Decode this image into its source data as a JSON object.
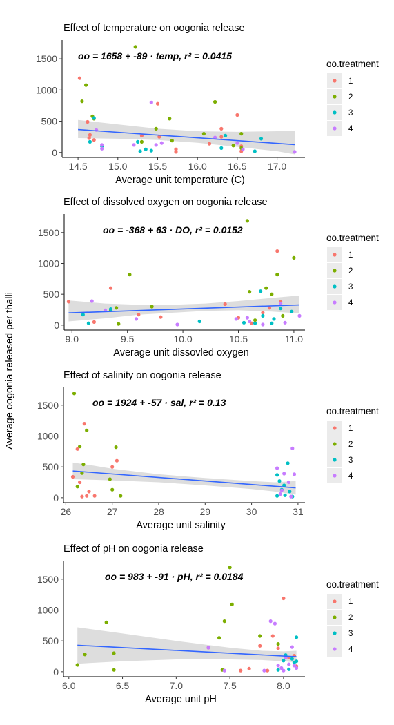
{
  "shared_ylabel": "Average oogonia released per thalli",
  "colors": {
    "1": "#F8766D",
    "2": "#7CAE00",
    "3": "#00BFC4",
    "4": "#C77CFF",
    "fit": "#3366FF",
    "band": "#D9D9D9"
  },
  "chart_data": [
    {
      "type": "scatter",
      "title": "Effect of temperature on oogonia release",
      "xlabel": "Average unit temperature (C)",
      "equation": "oo = 1658 + -89 · temp,  r² = 0.0415",
      "xlim": [
        14.3,
        17.35
      ],
      "ylim": [
        -80,
        1800
      ],
      "xticks": [
        "14.5",
        "15.0",
        "15.5",
        "16.0",
        "16.5",
        "17.0"
      ],
      "yticks": [
        "0",
        "500",
        "1000",
        "1500"
      ],
      "legend": {
        "title": "oo.treatment",
        "items": [
          "1",
          "2",
          "3",
          "4"
        ]
      },
      "fit": {
        "intercept": 1658,
        "slope": -89,
        "band": [
          [
            14.5,
            230,
            520
          ],
          [
            15.0,
            220,
            450
          ],
          [
            15.5,
            200,
            380
          ],
          [
            16.0,
            155,
            340
          ],
          [
            16.5,
            90,
            330
          ],
          [
            17.0,
            20,
            340
          ],
          [
            17.22,
            -30,
            350
          ]
        ]
      },
      "series": [
        {
          "treatment": "1",
          "x": [
            14.52,
            14.62,
            14.65,
            14.7,
            15.3,
            15.5,
            15.52,
            15.73,
            15.73,
            16.15,
            16.3,
            16.3,
            16.5,
            16.55,
            16.55,
            14.64
          ],
          "y": [
            1190,
            490,
            280,
            200,
            270,
            780,
            250,
            50,
            10,
            140,
            380,
            250,
            600,
            100,
            20,
            230
          ]
        },
        {
          "treatment": "2",
          "x": [
            14.55,
            14.6,
            14.68,
            14.7,
            15.22,
            15.48,
            15.65,
            15.68,
            16.08,
            16.22,
            16.45,
            16.55,
            16.55,
            15.3
          ],
          "y": [
            820,
            1080,
            580,
            540,
            1690,
            380,
            540,
            190,
            300,
            810,
            110,
            300,
            70,
            170
          ]
        },
        {
          "treatment": "3",
          "x": [
            14.7,
            14.65,
            14.8,
            15.25,
            15.35,
            15.42,
            16.3,
            16.35,
            16.72,
            16.8,
            15.28
          ],
          "y": [
            550,
            170,
            100,
            170,
            50,
            30,
            70,
            270,
            20,
            220,
            20
          ]
        },
        {
          "treatment": "4",
          "x": [
            14.73,
            14.8,
            14.8,
            15.2,
            15.42,
            15.55,
            16.22,
            16.5,
            16.57,
            17.22,
            15.48
          ],
          "y": [
            360,
            120,
            60,
            120,
            800,
            150,
            240,
            150,
            50,
            10,
            120
          ]
        }
      ]
    },
    {
      "type": "scatter",
      "title": "Effect of dissolved oxygen on oogonia release",
      "xlabel": "Average unit dissovled oxygen",
      "equation": "oo = -368 + 63 · DO,  r² = 0.0152",
      "xlim": [
        8.93,
        11.1
      ],
      "ylim": [
        -80,
        1800
      ],
      "xticks": [
        "9.0",
        "9.5",
        "10.0",
        "10.5",
        "11.0"
      ],
      "yticks": [
        "0",
        "500",
        "1000",
        "1500"
      ],
      "legend": {
        "title": "oo.treatment",
        "items": [
          "1",
          "2",
          "3",
          "4"
        ]
      },
      "fit": {
        "intercept": -368,
        "slope": 63,
        "band": [
          [
            8.97,
            60,
            400
          ],
          [
            9.3,
            110,
            350
          ],
          [
            9.6,
            170,
            330
          ],
          [
            9.9,
            200,
            330
          ],
          [
            10.2,
            230,
            350
          ],
          [
            10.5,
            240,
            390
          ],
          [
            10.8,
            220,
            440
          ],
          [
            11.05,
            190,
            480
          ]
        ]
      },
      "series": [
        {
          "treatment": "1",
          "x": [
            8.97,
            9.2,
            9.35,
            9.6,
            9.8,
            10.38,
            10.5,
            10.62,
            10.72,
            10.78,
            10.85,
            10.88
          ],
          "y": [
            380,
            50,
            600,
            170,
            130,
            340,
            120,
            30,
            200,
            280,
            1200,
            380
          ]
        },
        {
          "treatment": "2",
          "x": [
            9.35,
            9.4,
            9.52,
            9.72,
            10.58,
            10.6,
            10.75,
            10.8,
            10.85,
            11.0,
            10.65,
            10.9,
            9.42
          ],
          "y": [
            240,
            280,
            820,
            300,
            1690,
            540,
            600,
            500,
            820,
            1090,
            80,
            150,
            20
          ]
        },
        {
          "treatment": "3",
          "x": [
            9.1,
            9.15,
            9.35,
            10.15,
            10.55,
            10.65,
            10.7,
            10.8,
            10.82,
            10.98,
            10.72,
            10.88
          ],
          "y": [
            170,
            30,
            260,
            60,
            40,
            30,
            550,
            30,
            100,
            220,
            150,
            270
          ]
        },
        {
          "treatment": "4",
          "x": [
            9.18,
            9.3,
            9.58,
            9.95,
            10.48,
            10.58,
            10.72,
            10.88,
            11.05,
            10.92,
            10.6
          ],
          "y": [
            390,
            240,
            100,
            10,
            100,
            120,
            10,
            350,
            150,
            40,
            60
          ]
        }
      ]
    },
    {
      "type": "scatter",
      "title": "Effect of salinity on oogonia release",
      "xlabel": "Average unit salinity",
      "equation": "oo = 1924 + -57 · sal,  r² = 0.13",
      "xlim": [
        25.95,
        31.15
      ],
      "ylim": [
        -80,
        1800
      ],
      "xticks": [
        "26",
        "27",
        "28",
        "29",
        "30",
        "31"
      ],
      "yticks": [
        "0",
        "500",
        "1000",
        "1500"
      ],
      "legend": {
        "title": "oo.treatment",
        "items": [
          "1",
          "2",
          "3",
          "4"
        ]
      },
      "fit": {
        "intercept": 1924,
        "slope": -57,
        "band": [
          [
            26.15,
            300,
            570
          ],
          [
            26.6,
            290,
            520
          ],
          [
            27.0,
            280,
            470
          ],
          [
            28.0,
            250,
            380
          ],
          [
            29.0,
            200,
            320
          ],
          [
            30.0,
            140,
            270
          ],
          [
            30.5,
            100,
            250
          ],
          [
            30.95,
            50,
            270
          ]
        ]
      },
      "series": [
        {
          "treatment": "1",
          "x": [
            26.15,
            26.25,
            26.3,
            26.4,
            26.5,
            27.0,
            27.1,
            26.35,
            26.45,
            26.62
          ],
          "y": [
            340,
            790,
            250,
            1200,
            100,
            500,
            600,
            20,
            30,
            30
          ]
        },
        {
          "treatment": "2",
          "x": [
            26.18,
            26.3,
            26.38,
            26.45,
            26.35,
            27.08,
            26.95,
            27.18,
            26.25,
            27.0
          ],
          "y": [
            1690,
            830,
            540,
            1090,
            400,
            820,
            300,
            30,
            180,
            130
          ]
        },
        {
          "treatment": "3",
          "x": [
            30.55,
            30.6,
            30.7,
            30.78,
            30.82,
            30.55,
            30.72,
            30.88,
            30.65
          ],
          "y": [
            370,
            270,
            200,
            560,
            100,
            30,
            40,
            20,
            130
          ]
        },
        {
          "treatment": "4",
          "x": [
            30.55,
            30.7,
            30.88,
            30.92,
            30.8,
            30.65,
            30.62,
            30.85
          ],
          "y": [
            480,
            390,
            800,
            380,
            250,
            120,
            60,
            20
          ]
        }
      ]
    },
    {
      "type": "scatter",
      "title": "Effect of pH on oogonia release",
      "xlabel": "Average unit pH",
      "equation": "oo = 983 + -91 · pH,  r² = 0.0184",
      "xlim": [
        5.95,
        8.2
      ],
      "ylim": [
        -80,
        1800
      ],
      "xticks": [
        "6.0",
        "6.5",
        "7.0",
        "7.5",
        "8.0"
      ],
      "yticks": [
        "0",
        "500",
        "1000",
        "1500"
      ],
      "legend": {
        "title": "oo.treatment",
        "items": [
          "1",
          "2",
          "3",
          "4"
        ]
      },
      "fit": {
        "intercept": 983,
        "slope": -91,
        "band": [
          [
            6.08,
            130,
            720
          ],
          [
            6.5,
            170,
            620
          ],
          [
            7.0,
            200,
            500
          ],
          [
            7.5,
            200,
            390
          ],
          [
            7.8,
            190,
            340
          ],
          [
            8.0,
            170,
            330
          ],
          [
            8.12,
            150,
            340
          ]
        ]
      },
      "series": [
        {
          "treatment": "1",
          "x": [
            7.3,
            7.68,
            7.78,
            7.9,
            7.95,
            8.0,
            8.05,
            8.1,
            8.12,
            7.6,
            7.85
          ],
          "y": [
            390,
            50,
            420,
            580,
            380,
            1190,
            230,
            260,
            90,
            20,
            20
          ]
        },
        {
          "treatment": "2",
          "x": [
            6.08,
            6.15,
            6.35,
            6.42,
            6.42,
            7.4,
            7.45,
            7.5,
            7.52,
            7.78,
            7.95,
            7.43
          ],
          "y": [
            110,
            280,
            800,
            300,
            30,
            550,
            820,
            1690,
            1090,
            580,
            450,
            30
          ]
        },
        {
          "treatment": "3",
          "x": [
            7.95,
            8.0,
            8.02,
            8.05,
            8.1,
            8.12,
            8.08,
            8.12
          ],
          "y": [
            30,
            180,
            270,
            40,
            150,
            560,
            210,
            170
          ]
        },
        {
          "treatment": "4",
          "x": [
            7.3,
            7.45,
            7.88,
            7.92,
            7.95,
            7.98,
            8.02,
            8.05,
            8.08,
            8.12,
            7.82,
            8.0,
            8.1
          ],
          "y": [
            390,
            20,
            820,
            780,
            100,
            60,
            230,
            120,
            400,
            60,
            20,
            20,
            100
          ]
        }
      ]
    }
  ]
}
